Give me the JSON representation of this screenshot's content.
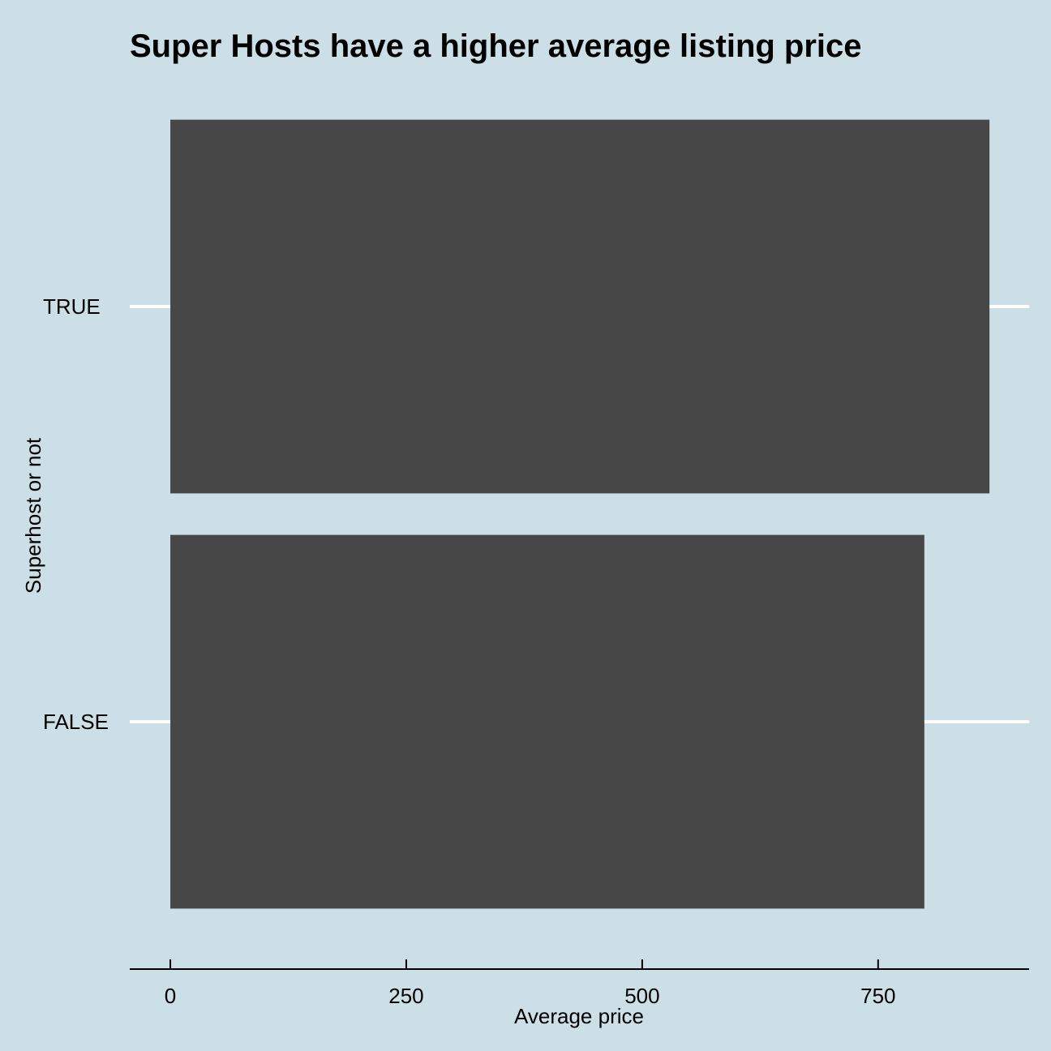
{
  "chart_data": {
    "type": "bar",
    "orientation": "horizontal",
    "title": "Super Hosts have a higher average listing price",
    "xlabel": "Average price",
    "ylabel": "Superhost or not",
    "categories": [
      "TRUE",
      "FALSE"
    ],
    "values": [
      868,
      799
    ],
    "xlim": [
      -43,
      910
    ],
    "xticks": [
      0,
      250,
      500,
      750
    ],
    "grid": "horizontal major gridlines (white)",
    "bar_color": "#474747",
    "background": "#cddfe6",
    "gridline_color": "#ffffff",
    "axis_color": "#000000"
  }
}
